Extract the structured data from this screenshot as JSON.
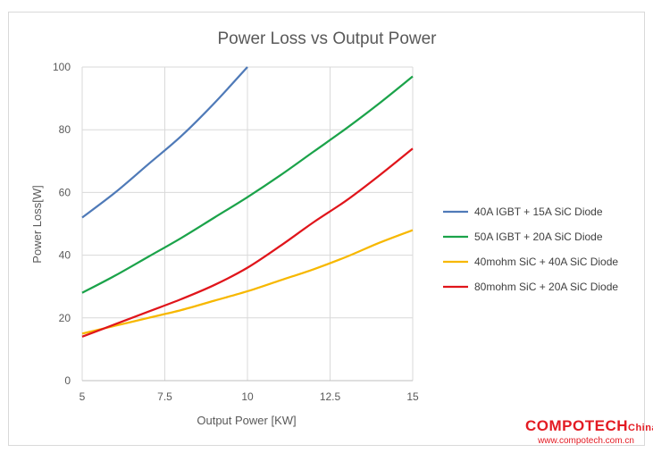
{
  "chart_data": {
    "type": "line",
    "title": "Power Loss vs Output Power",
    "xlabel": "Output Power [KW]",
    "ylabel": "Power Loss[W]",
    "xlim": [
      5,
      15
    ],
    "ylim": [
      0,
      100
    ],
    "x_ticks": [
      "5",
      "7.5",
      "10",
      "12.5",
      "15"
    ],
    "y_ticks": [
      "0",
      "20",
      "40",
      "60",
      "80",
      "100"
    ],
    "grid": true,
    "legend_position": "right",
    "series": [
      {
        "name": "40A IGBT + 15A SiC Diode",
        "color": "#4f7ab8",
        "x": [
          5,
          6,
          7,
          8,
          9,
          10
        ],
        "y": [
          52,
          60,
          69,
          78,
          88.5,
          100
        ]
      },
      {
        "name": "50A IGBT + 20A SiC Diode",
        "color": "#1ba34a",
        "x": [
          5,
          6,
          7,
          8,
          9,
          10,
          11,
          12,
          13,
          14,
          15
        ],
        "y": [
          28,
          33.5,
          39.5,
          45.5,
          52,
          58.5,
          65.5,
          73,
          80.5,
          88.5,
          97
        ]
      },
      {
        "name": "40mohm SiC + 40A SiC Diode",
        "color": "#f7b800",
        "x": [
          5,
          6,
          7,
          8,
          9,
          10,
          11,
          12,
          13,
          14,
          15
        ],
        "y": [
          15,
          17.5,
          20,
          22.5,
          25.5,
          28.5,
          32,
          35.5,
          39.5,
          44,
          48
        ]
      },
      {
        "name": "80mohm SiC + 20A SiC Diode",
        "color": "#e0151b",
        "x": [
          5,
          6,
          7,
          8,
          9,
          10,
          11,
          12,
          13,
          14,
          15
        ],
        "y": [
          14,
          18,
          22,
          26,
          30.5,
          36,
          43,
          50.5,
          57.5,
          65.5,
          74
        ]
      }
    ]
  },
  "watermark": {
    "brand": "COMPOTECH",
    "brand_sub": "China",
    "url": "www.compotech.com.cn"
  }
}
